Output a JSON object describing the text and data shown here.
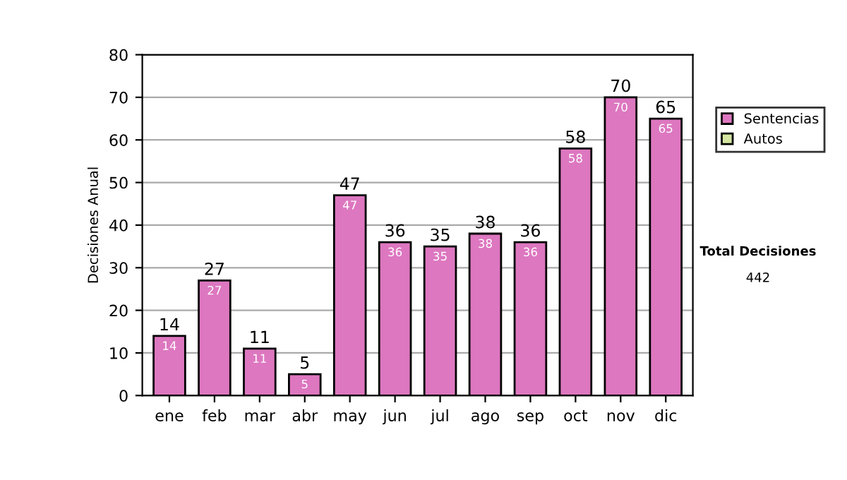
{
  "chart_data": {
    "type": "bar",
    "ylabel": "Decisiones Anual",
    "categories": [
      "ene",
      "feb",
      "mar",
      "abr",
      "may",
      "jun",
      "jul",
      "ago",
      "sep",
      "oct",
      "nov",
      "dic"
    ],
    "series": [
      {
        "name": "Sentencias",
        "color": "#dd77c0",
        "values": [
          14,
          27,
          11,
          5,
          47,
          36,
          35,
          38,
          36,
          58,
          70,
          65
        ]
      },
      {
        "name": "Autos",
        "color": "#d4e6a0",
        "values": [
          null,
          null,
          null,
          null,
          null,
          null,
          null,
          null,
          null,
          null,
          null,
          null
        ]
      }
    ],
    "stacked": true,
    "data_labels": true,
    "totals": [
      "14",
      "27",
      "11",
      "5",
      "47",
      "36",
      "35",
      "38",
      "36",
      "58",
      "70",
      "65"
    ],
    "ylim": [
      0,
      80
    ],
    "yticks": [
      0,
      10,
      20,
      30,
      40,
      50,
      60,
      70,
      80
    ],
    "grid": "y",
    "legend": "right",
    "annotations": [
      "Total Decisiones",
      "442"
    ]
  }
}
